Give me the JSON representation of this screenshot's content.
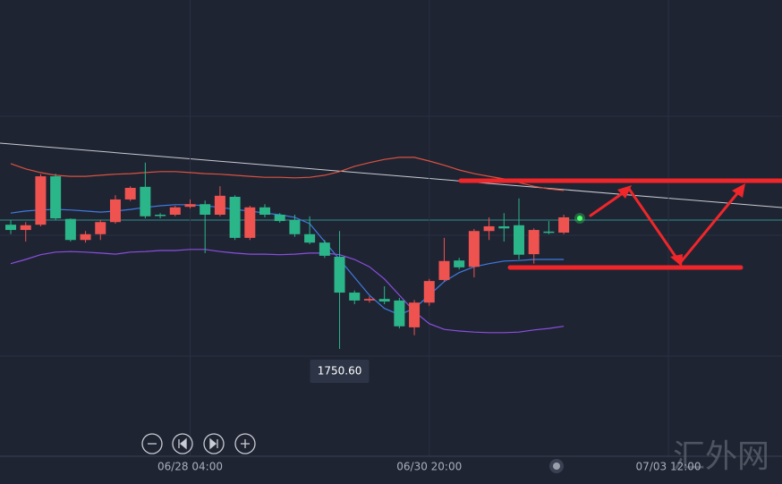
{
  "chart_data": {
    "type": "candlestick",
    "up_color": "#ef5350",
    "down_color": "#2bb68a",
    "open": [
      1774.2,
      1773.2,
      1774.2,
      1783.4,
      1775.3,
      1771.3,
      1772.4,
      1774.7,
      1779.0,
      1781.4,
      1776.1,
      1776.1,
      1777.6,
      1778.1,
      1776.1,
      1779.5,
      1771.7,
      1777.5,
      1776.1,
      1775.1,
      1772.4,
      1770.8,
      1768.1,
      1761.3,
      1759.8,
      1760.1,
      1759.8,
      1754.7,
      1759.4,
      1763.7,
      1767.4,
      1766.2,
      1773.0,
      1773.9,
      1774.1,
      1768.6,
      1772.9,
      1772.7
    ],
    "high": [
      1775.1,
      1774.7,
      1783.8,
      1783.9,
      1775.4,
      1773.0,
      1775.1,
      1779.8,
      1781.5,
      1786.0,
      1776.4,
      1777.8,
      1779.0,
      1778.8,
      1781.5,
      1779.8,
      1777.8,
      1778.1,
      1776.4,
      1776.1,
      1775.8,
      1771.3,
      1773.0,
      1761.7,
      1760.6,
      1762.5,
      1760.3,
      1759.9,
      1763.9,
      1771.7,
      1767.9,
      1773.4,
      1775.6,
      1776.4,
      1779.2,
      1773.5,
      1774.9,
      1776.1
    ],
    "low": [
      1772.4,
      1771.0,
      1773.9,
      1775.1,
      1771.0,
      1770.8,
      1771.3,
      1774.4,
      1778.7,
      1775.4,
      1775.4,
      1775.8,
      1777.3,
      1768.8,
      1775.8,
      1771.3,
      1771.3,
      1775.6,
      1774.6,
      1771.9,
      1770.5,
      1767.9,
      1750.6,
      1759.1,
      1759.4,
      1759.1,
      1754.5,
      1753.2,
      1758.8,
      1763.4,
      1765.7,
      1764.2,
      1771.3,
      1771.0,
      1767.6,
      1766.8,
      1772.4,
      1772.4
    ],
    "close": [
      1773.2,
      1774.1,
      1783.4,
      1775.4,
      1771.3,
      1772.4,
      1774.7,
      1779.0,
      1781.2,
      1775.8,
      1775.9,
      1777.5,
      1778.1,
      1776.1,
      1779.7,
      1771.7,
      1777.5,
      1776.1,
      1774.9,
      1772.4,
      1770.8,
      1768.3,
      1761.3,
      1759.8,
      1760.1,
      1759.6,
      1754.9,
      1759.4,
      1763.5,
      1767.3,
      1766.1,
      1773.0,
      1773.9,
      1773.5,
      1768.5,
      1773.2,
      1772.7,
      1775.6
    ],
    "lines": [
      {
        "color": "#d9533f",
        "values": [
          1785.8,
          1784.8,
          1784.1,
          1783.6,
          1783.4,
          1783.4,
          1783.6,
          1783.8,
          1783.9,
          1784.1,
          1784.3,
          1784.3,
          1784.1,
          1783.9,
          1783.8,
          1783.6,
          1783.4,
          1783.2,
          1783.2,
          1783.1,
          1783.2,
          1783.6,
          1784.3,
          1785.3,
          1786.0,
          1786.6,
          1787.0,
          1787.0,
          1786.3,
          1785.5,
          1784.6,
          1783.9,
          1783.4,
          1782.9,
          1782.2,
          1781.5,
          1781.0,
          1780.7
        ]
      },
      {
        "color": "#3f7be0",
        "values": [
          1776.4,
          1776.8,
          1777.0,
          1777.1,
          1777.0,
          1776.8,
          1776.6,
          1776.8,
          1777.1,
          1777.5,
          1777.8,
          1778.0,
          1778.0,
          1777.8,
          1777.5,
          1777.1,
          1776.8,
          1776.4,
          1776.1,
          1775.6,
          1774.4,
          1771.0,
          1767.6,
          1764.2,
          1760.8,
          1758.3,
          1757.1,
          1758.3,
          1760.8,
          1763.4,
          1765.1,
          1766.2,
          1766.8,
          1767.3,
          1767.4,
          1767.6,
          1767.6,
          1767.6
        ]
      },
      {
        "color": "#8a4fe0",
        "values": [
          1766.8,
          1767.6,
          1768.5,
          1769.0,
          1769.1,
          1769.0,
          1768.8,
          1768.6,
          1769.0,
          1769.1,
          1769.3,
          1769.3,
          1769.5,
          1769.5,
          1769.1,
          1768.8,
          1768.6,
          1768.6,
          1768.5,
          1768.6,
          1768.8,
          1768.8,
          1768.5,
          1767.6,
          1766.2,
          1763.9,
          1760.8,
          1757.7,
          1755.4,
          1754.3,
          1754.0,
          1753.8,
          1753.7,
          1753.7,
          1753.8,
          1754.2,
          1754.5,
          1754.9
        ]
      }
    ],
    "ylim": [
      1730.2,
      1816.9
    ],
    "xlim": [
      -0.72,
      51.6
    ],
    "xticks": [
      {
        "value": 12,
        "label": "06/28 04:00"
      },
      {
        "value": 28,
        "label": "06/30 20:00"
      },
      {
        "value": 44,
        "label": "07/03 12:00"
      }
    ],
    "low_label": {
      "value": 1750.6,
      "label": "1750.60"
    },
    "watermark": "汇外网"
  }
}
